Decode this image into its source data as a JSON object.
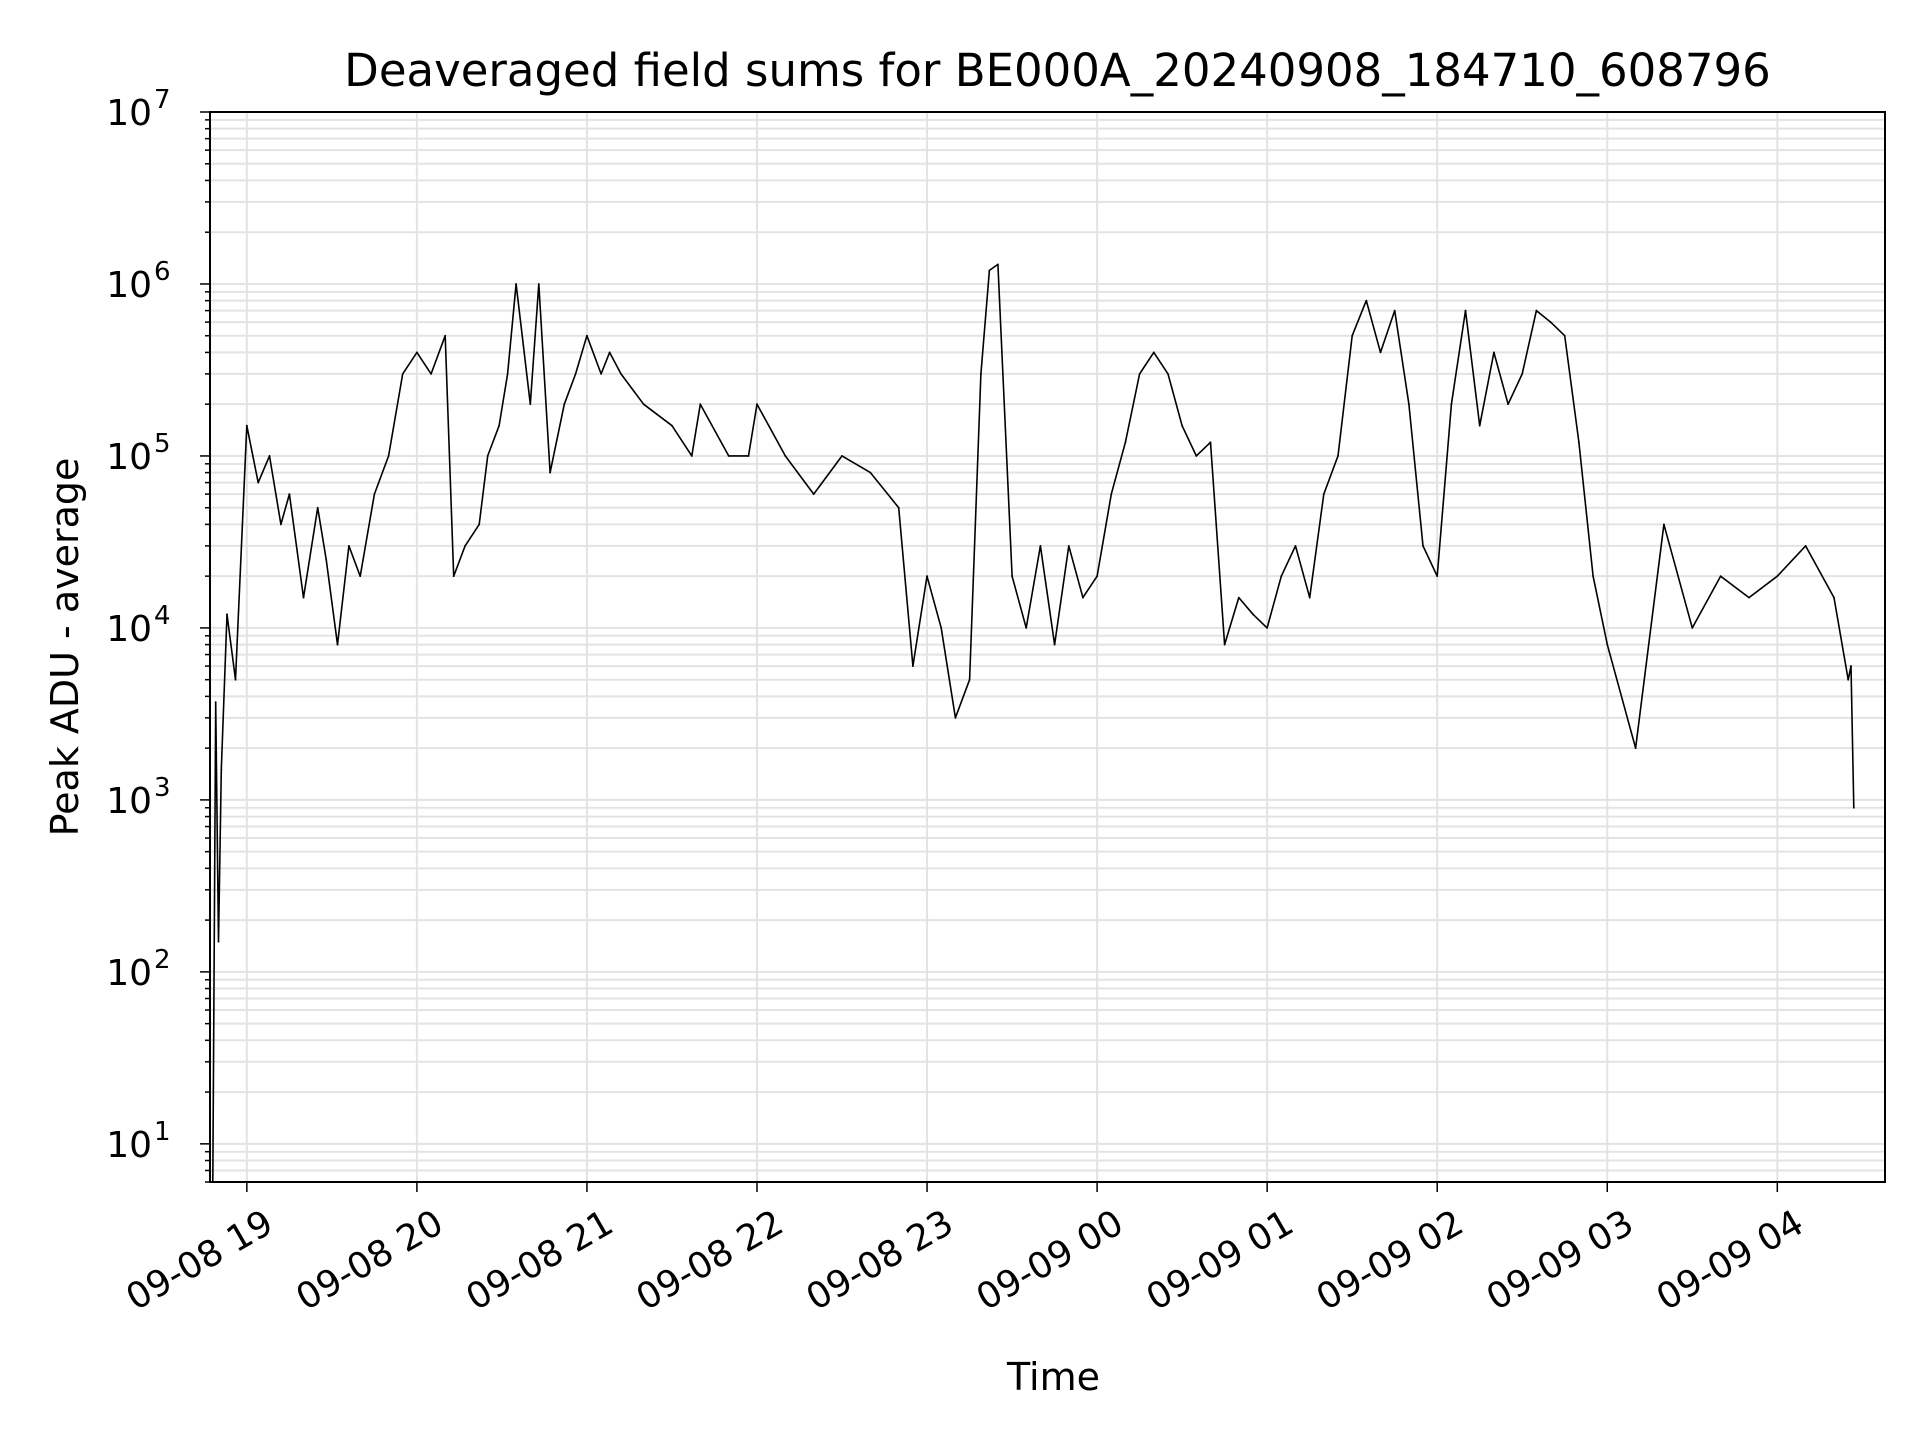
{
  "chart_data": {
    "type": "line",
    "title": "Deaveraged field sums for BE000A_20240908_184710_608796",
    "xlabel": "Time",
    "ylabel": "Peak ADU - average",
    "yscale": "log",
    "ylim": [
      6,
      10000000
    ],
    "xlim": [
      "2024-09-08 18:47",
      "2024-09-09 04:38"
    ],
    "grid": true,
    "line_color": "#000000",
    "grid_color": "#e3e3e3",
    "x_ticks": [
      {
        "t": "2024-09-08 19:00",
        "label": "09-08 19"
      },
      {
        "t": "2024-09-08 20:00",
        "label": "09-08 20"
      },
      {
        "t": "2024-09-08 21:00",
        "label": "09-08 21"
      },
      {
        "t": "2024-09-08 22:00",
        "label": "09-08 22"
      },
      {
        "t": "2024-09-08 23:00",
        "label": "09-08 23"
      },
      {
        "t": "2024-09-09 00:00",
        "label": "09-09 00"
      },
      {
        "t": "2024-09-09 01:00",
        "label": "09-09 01"
      },
      {
        "t": "2024-09-09 02:00",
        "label": "09-09 02"
      },
      {
        "t": "2024-09-09 03:00",
        "label": "09-09 03"
      },
      {
        "t": "2024-09-09 04:00",
        "label": "09-09 04"
      }
    ],
    "y_ticks": [
      {
        "value": 10,
        "base": "10",
        "exp": "1"
      },
      {
        "value": 100,
        "base": "10",
        "exp": "2"
      },
      {
        "value": 1000,
        "base": "10",
        "exp": "3"
      },
      {
        "value": 10000,
        "base": "10",
        "exp": "4"
      },
      {
        "value": 100000,
        "base": "10",
        "exp": "5"
      },
      {
        "value": 1000000,
        "base": "10",
        "exp": "6"
      },
      {
        "value": 10000000,
        "base": "10",
        "exp": "7"
      }
    ],
    "series": [
      {
        "x": [
          "2024-09-08 18:48",
          "2024-09-08 18:49",
          "2024-09-08 18:50",
          "2024-09-08 18:51",
          "2024-09-08 18:53",
          "2024-09-08 18:56",
          "2024-09-08 19:00",
          "2024-09-08 19:04",
          "2024-09-08 19:08",
          "2024-09-08 19:12",
          "2024-09-08 19:15",
          "2024-09-08 19:20",
          "2024-09-08 19:25",
          "2024-09-08 19:28",
          "2024-09-08 19:32",
          "2024-09-08 19:36",
          "2024-09-08 19:40",
          "2024-09-08 19:45",
          "2024-09-08 19:50",
          "2024-09-08 19:55",
          "2024-09-08 20:00",
          "2024-09-08 20:05",
          "2024-09-08 20:10",
          "2024-09-08 20:13",
          "2024-09-08 20:17",
          "2024-09-08 20:22",
          "2024-09-08 20:25",
          "2024-09-08 20:29",
          "2024-09-08 20:32",
          "2024-09-08 20:35",
          "2024-09-08 20:40",
          "2024-09-08 20:43",
          "2024-09-08 20:47",
          "2024-09-08 20:52",
          "2024-09-08 20:56",
          "2024-09-08 21:00",
          "2024-09-08 21:05",
          "2024-09-08 21:08",
          "2024-09-08 21:12",
          "2024-09-08 21:20",
          "2024-09-08 21:30",
          "2024-09-08 21:37",
          "2024-09-08 21:40",
          "2024-09-08 21:50",
          "2024-09-08 21:57",
          "2024-09-08 22:00",
          "2024-09-08 22:10",
          "2024-09-08 22:20",
          "2024-09-08 22:30",
          "2024-09-08 22:40",
          "2024-09-08 22:50",
          "2024-09-08 22:55",
          "2024-09-08 23:00",
          "2024-09-08 23:05",
          "2024-09-08 23:10",
          "2024-09-08 23:15",
          "2024-09-08 23:19",
          "2024-09-08 23:22",
          "2024-09-08 23:25",
          "2024-09-08 23:30",
          "2024-09-08 23:35",
          "2024-09-08 23:40",
          "2024-09-08 23:45",
          "2024-09-08 23:50",
          "2024-09-08 23:55",
          "2024-09-09 00:00",
          "2024-09-09 00:05",
          "2024-09-09 00:10",
          "2024-09-09 00:15",
          "2024-09-09 00:20",
          "2024-09-09 00:25",
          "2024-09-09 00:30",
          "2024-09-09 00:35",
          "2024-09-09 00:40",
          "2024-09-09 00:45",
          "2024-09-09 00:50",
          "2024-09-09 00:55",
          "2024-09-09 01:00",
          "2024-09-09 01:05",
          "2024-09-09 01:10",
          "2024-09-09 01:15",
          "2024-09-09 01:20",
          "2024-09-09 01:25",
          "2024-09-09 01:30",
          "2024-09-09 01:35",
          "2024-09-09 01:40",
          "2024-09-09 01:45",
          "2024-09-09 01:50",
          "2024-09-09 01:55",
          "2024-09-09 02:00",
          "2024-09-09 02:05",
          "2024-09-09 02:10",
          "2024-09-09 02:15",
          "2024-09-09 02:20",
          "2024-09-09 02:25",
          "2024-09-09 02:30",
          "2024-09-09 02:35",
          "2024-09-09 02:40",
          "2024-09-09 02:45",
          "2024-09-09 02:50",
          "2024-09-09 02:55",
          "2024-09-09 03:00",
          "2024-09-09 03:10",
          "2024-09-09 03:20",
          "2024-09-09 03:30",
          "2024-09-09 03:40",
          "2024-09-09 03:50",
          "2024-09-09 04:00",
          "2024-09-09 04:10",
          "2024-09-09 04:20",
          "2024-09-09 04:25",
          "2024-09-09 04:26",
          "2024-09-09 04:27"
        ],
        "values": [
          6,
          3700,
          150,
          1500,
          12000,
          5000,
          150000,
          70000,
          100000,
          40000,
          60000,
          15000,
          50000,
          25000,
          8000,
          30000,
          20000,
          60000,
          100000,
          300000,
          400000,
          300000,
          500000,
          20000,
          30000,
          40000,
          100000,
          150000,
          300000,
          1000000,
          200000,
          1000000,
          80000,
          200000,
          300000,
          500000,
          300000,
          400000,
          300000,
          200000,
          150000,
          100000,
          200000,
          100000,
          100000,
          200000,
          100000,
          60000,
          100000,
          80000,
          50000,
          6000,
          20000,
          10000,
          3000,
          5000,
          300000,
          1200000,
          1300000,
          20000,
          10000,
          30000,
          8000,
          30000,
          15000,
          20000,
          60000,
          120000,
          300000,
          400000,
          300000,
          150000,
          100000,
          120000,
          8000,
          15000,
          12000,
          10000,
          20000,
          30000,
          15000,
          60000,
          100000,
          500000,
          800000,
          400000,
          700000,
          200000,
          30000,
          20000,
          200000,
          700000,
          150000,
          400000,
          200000,
          300000,
          700000,
          600000,
          500000,
          120000,
          20000,
          8000,
          2000,
          40000,
          10000,
          20000,
          15000,
          20000,
          30000,
          15000,
          5000,
          6000,
          900
        ]
      }
    ]
  }
}
